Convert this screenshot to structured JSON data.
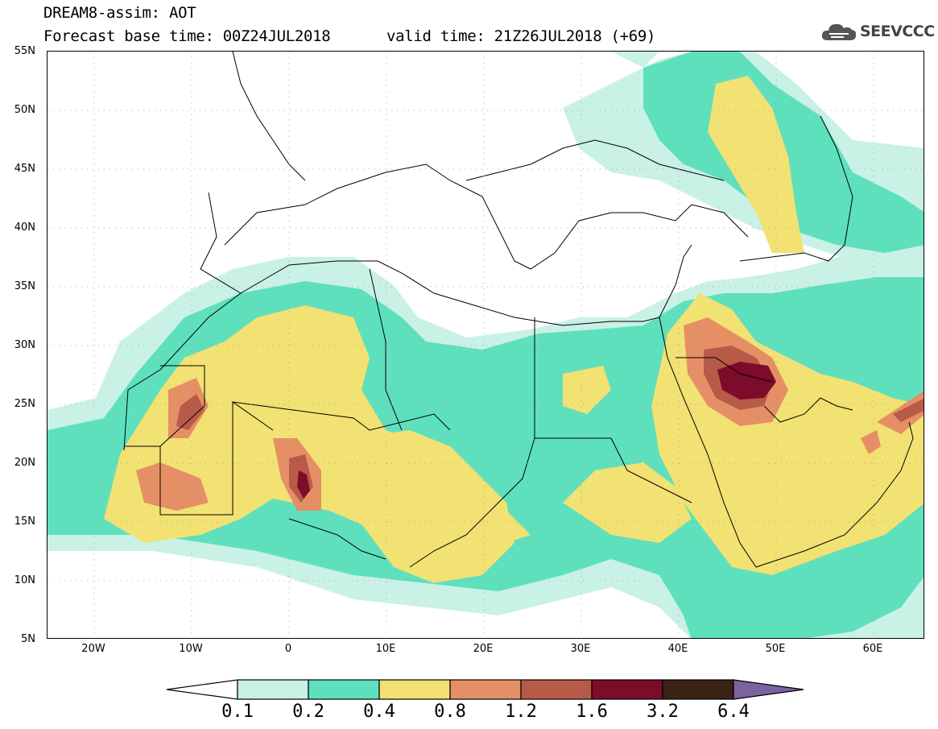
{
  "header": {
    "title": "DREAM8-assim: AOT",
    "base_time": "Forecast base time: 00Z24JUL2018",
    "valid_time": "valid time: 21Z26JUL2018 (+69)"
  },
  "logo": {
    "text": "SEEVCCC",
    "icon": "cloud-icon"
  },
  "map": {
    "lat_labels": [
      "55N",
      "50N",
      "45N",
      "40N",
      "35N",
      "30N",
      "25N",
      "20N",
      "15N",
      "10N",
      "5N"
    ],
    "lon_labels": [
      "20W",
      "10W",
      "0",
      "10E",
      "20E",
      "30E",
      "40E",
      "50E",
      "60E"
    ],
    "lat_range": [
      5,
      55
    ],
    "lon_range": [
      -25,
      65
    ]
  },
  "colorbar": {
    "labels": [
      "0.1",
      "0.2",
      "0.4",
      "0.8",
      "1.2",
      "1.6",
      "3.2",
      "6.4"
    ],
    "colors": [
      "#c9f1e6",
      "#5ee0bd",
      "#f2e173",
      "#e58f66",
      "#b85a48",
      "#7d0b2a",
      "#3a2214",
      "#7d62a1"
    ]
  }
}
